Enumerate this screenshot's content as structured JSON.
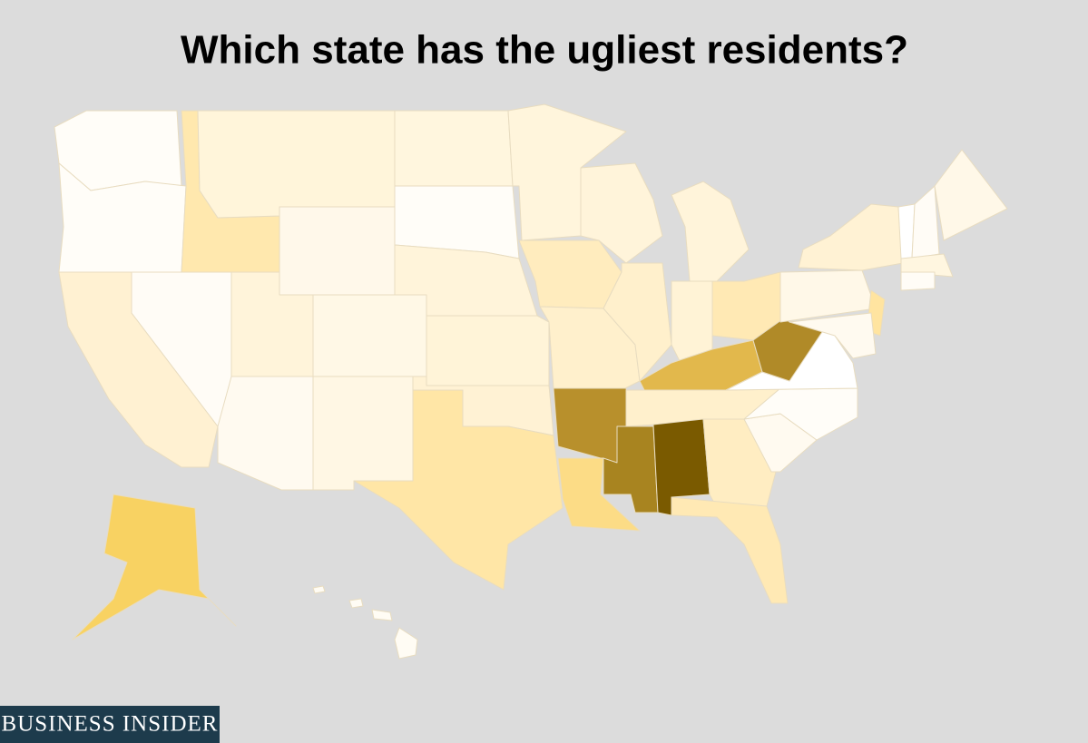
{
  "title": "Which state has the ugliest residents?",
  "brand": "BUSINESS INSIDER"
}
